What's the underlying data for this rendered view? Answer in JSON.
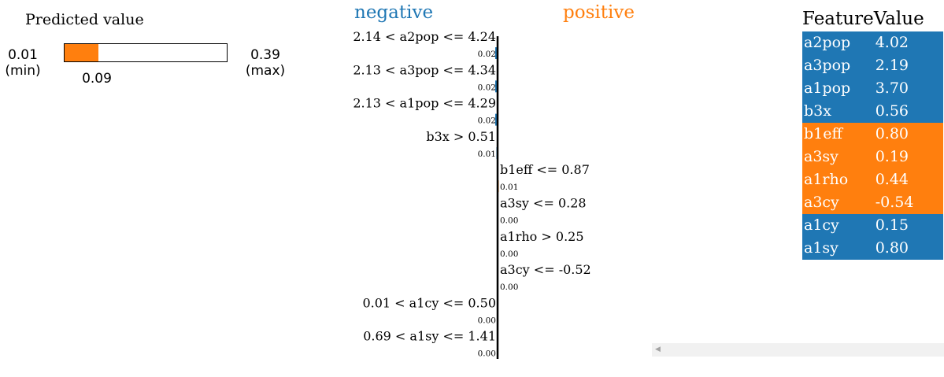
{
  "predicted": {
    "title": "Predicted value",
    "min_label": "0.01\n(min)",
    "max_label": "0.39\n(max)",
    "value_label": "0.09",
    "min": 0.01,
    "max": 0.39,
    "value": 0.09,
    "fill_color": "#ff7f0e"
  },
  "chart_data": {
    "type": "bar",
    "orientation": "horizontal",
    "negative_label": "negative",
    "positive_label": "positive",
    "negative_color": "#1f77b4",
    "positive_color": "#ff7f0e",
    "rows": [
      {
        "condition": "2.14 < a2pop <= 4.24",
        "weight_label": "0.02",
        "value": -0.02,
        "side": "negative"
      },
      {
        "condition": "2.13 < a3pop <= 4.34",
        "weight_label": "0.02",
        "value": -0.02,
        "side": "negative"
      },
      {
        "condition": "2.13 < a1pop <= 4.29",
        "weight_label": "0.02",
        "value": -0.02,
        "side": "negative"
      },
      {
        "condition": "b3x > 0.51",
        "weight_label": "0.01",
        "value": -0.01,
        "side": "negative"
      },
      {
        "condition": "b1eff <= 0.87",
        "weight_label": "0.01",
        "value": 0.01,
        "side": "positive"
      },
      {
        "condition": "a3sy <= 0.28",
        "weight_label": "0.00",
        "value": 0.0,
        "side": "positive"
      },
      {
        "condition": "a1rho > 0.25",
        "weight_label": "0.00",
        "value": 0.0,
        "side": "positive"
      },
      {
        "condition": "a3cy <= -0.52",
        "weight_label": "0.00",
        "value": 0.0,
        "side": "positive"
      },
      {
        "condition": "0.01 < a1cy <= 0.50",
        "weight_label": "0.00",
        "value": -0.0,
        "side": "negative"
      },
      {
        "condition": "0.69 < a1sy <= 1.41",
        "weight_label": "0.00",
        "value": -0.0,
        "side": "negative"
      }
    ]
  },
  "feature_table": {
    "headers": [
      "Feature",
      "Value"
    ],
    "rows": [
      {
        "feature": "a2pop",
        "value": "4.02",
        "color": "#1f77b4"
      },
      {
        "feature": "a3pop",
        "value": "2.19",
        "color": "#1f77b4"
      },
      {
        "feature": "a1pop",
        "value": "3.70",
        "color": "#1f77b4"
      },
      {
        "feature": "b3x",
        "value": "0.56",
        "color": "#1f77b4"
      },
      {
        "feature": "b1eff",
        "value": "0.80",
        "color": "#ff7f0e"
      },
      {
        "feature": "a3sy",
        "value": "0.19",
        "color": "#ff7f0e"
      },
      {
        "feature": "a1rho",
        "value": "0.44",
        "color": "#ff7f0e"
      },
      {
        "feature": "a3cy",
        "value": "-0.54",
        "color": "#ff7f0e"
      },
      {
        "feature": "a1cy",
        "value": "0.15",
        "color": "#1f77b4"
      },
      {
        "feature": "a1sy",
        "value": "0.80",
        "color": "#1f77b4"
      }
    ]
  },
  "scrollbar": {
    "arrow_icon": "chevron-left-icon"
  }
}
